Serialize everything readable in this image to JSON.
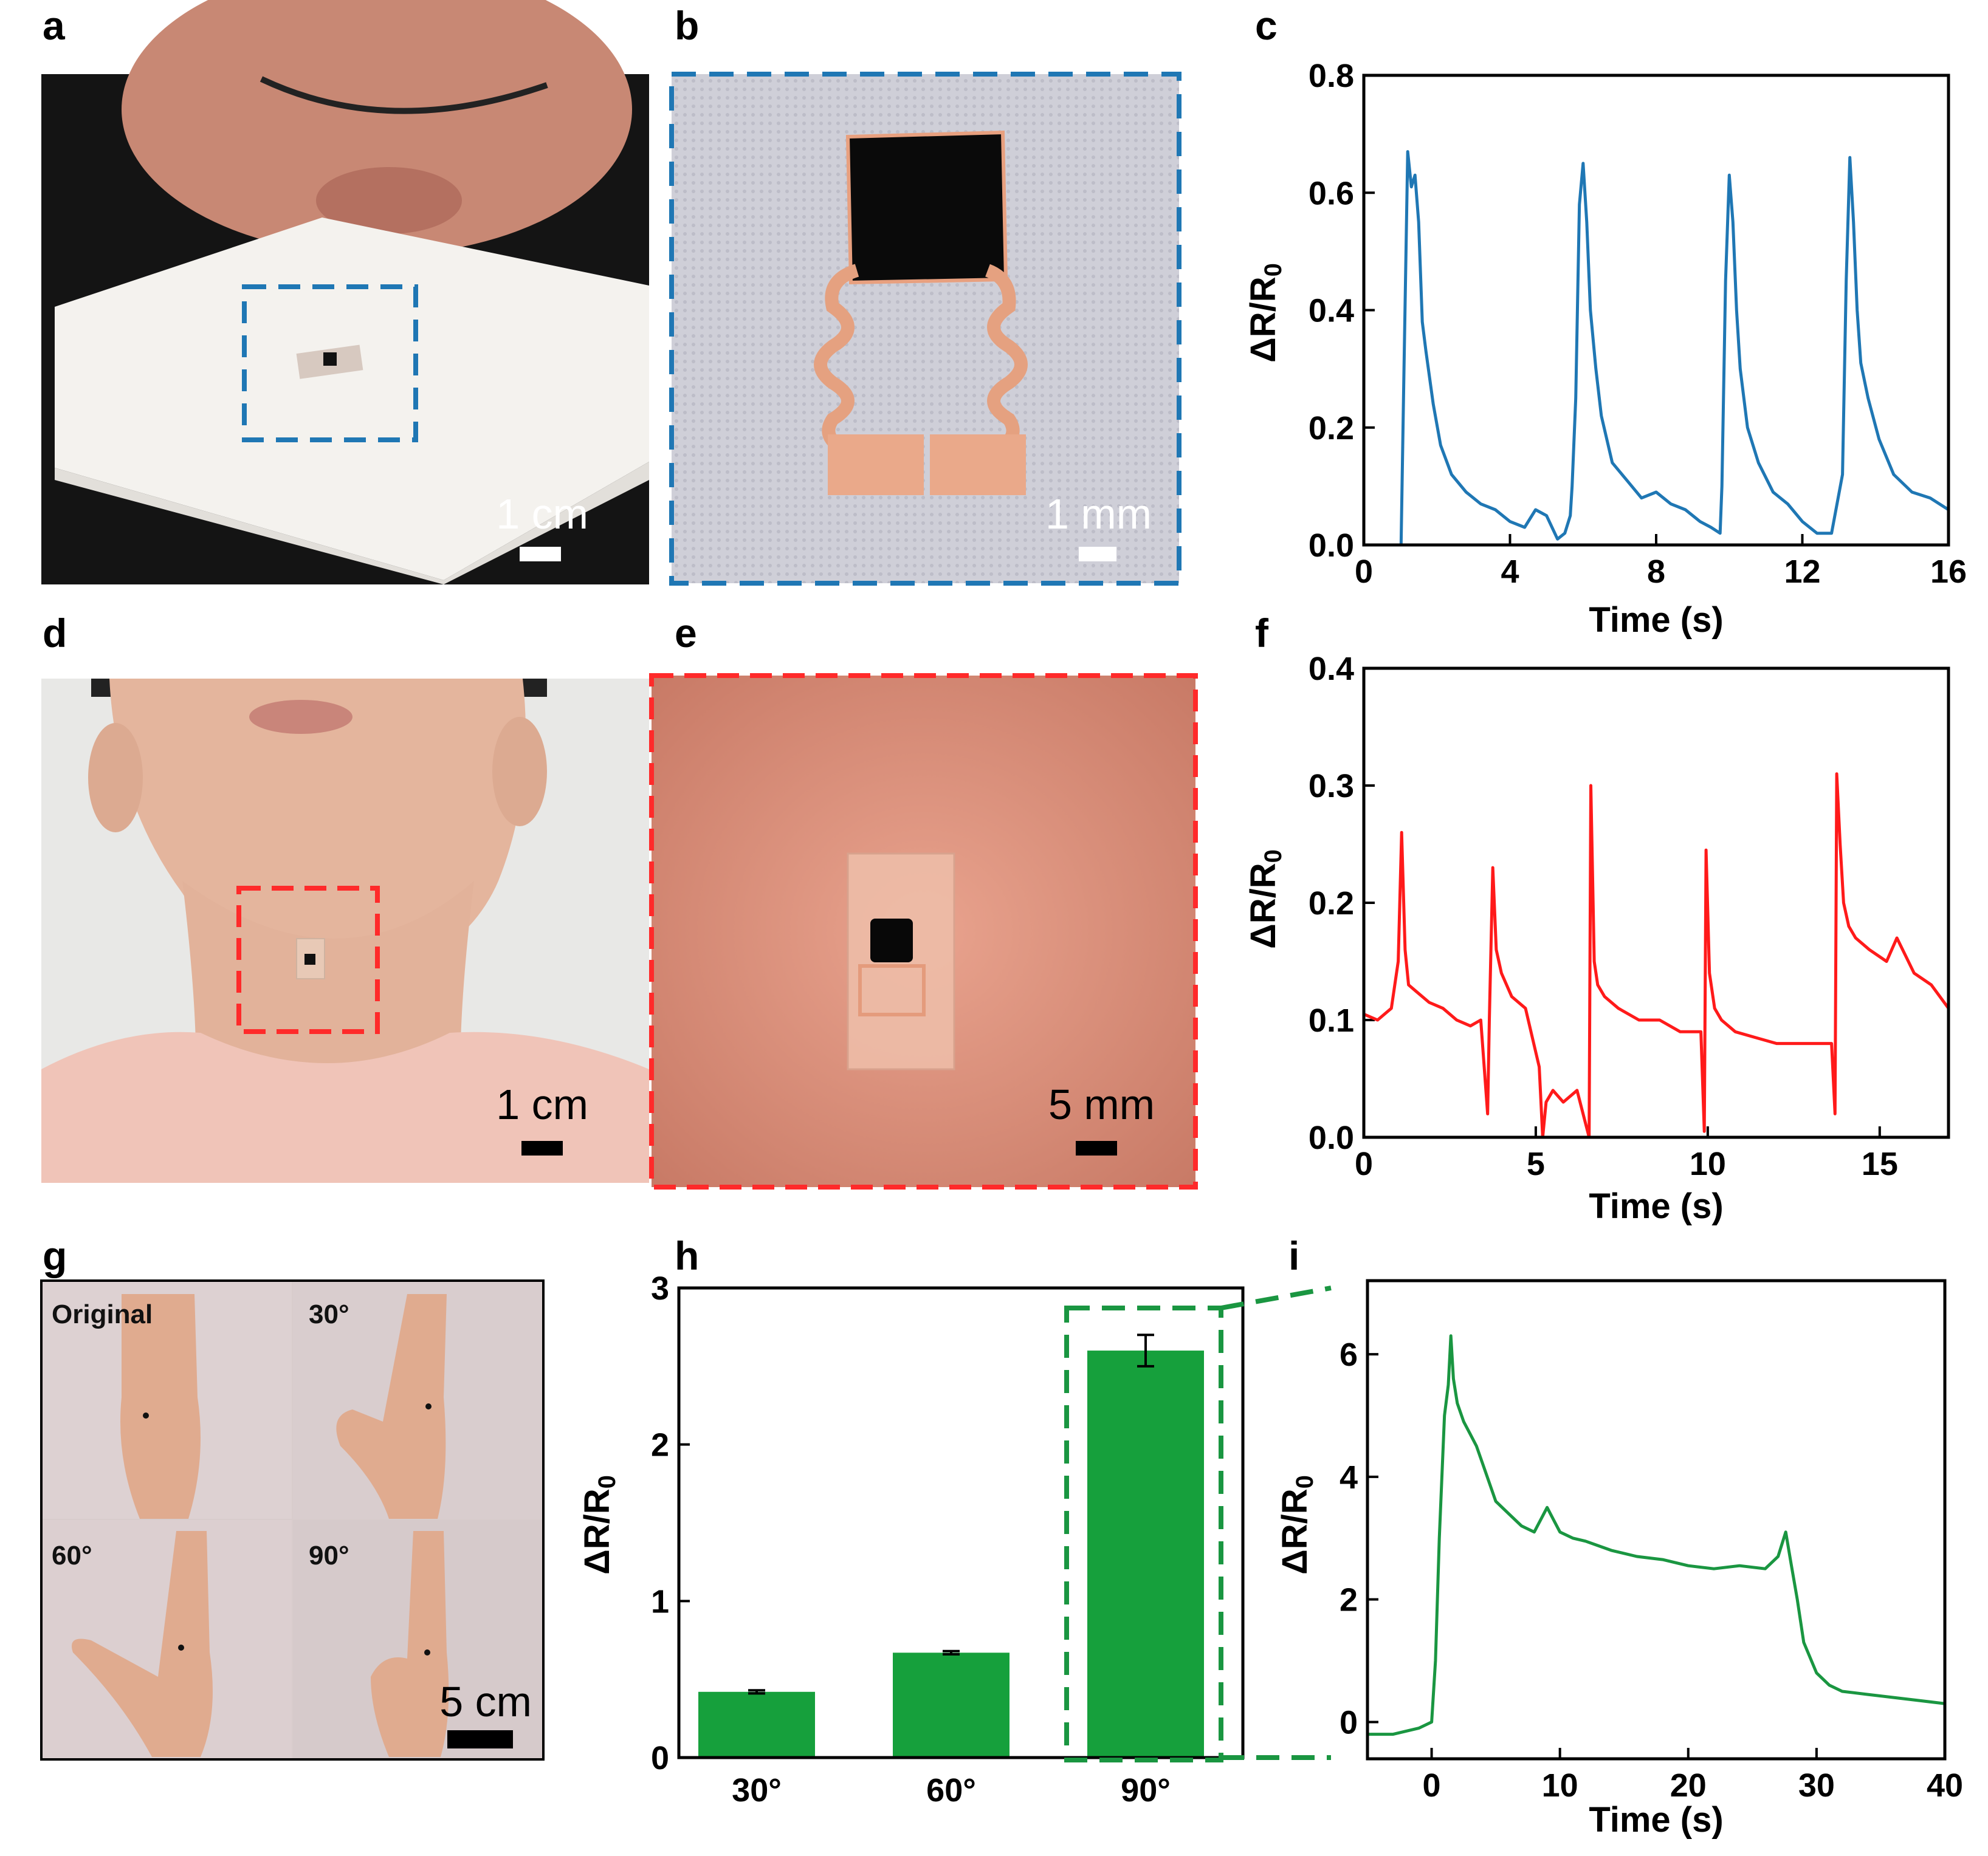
{
  "panel_labels": [
    "a",
    "b",
    "c",
    "d",
    "e",
    "f",
    "g",
    "h",
    "i"
  ],
  "photos": {
    "a": {
      "scale_text": "1 cm"
    },
    "b": {
      "scale_text": "1 mm"
    },
    "d": {
      "scale_text": "1 cm"
    },
    "e": {
      "scale_text": "5 mm"
    },
    "g": {
      "scale_text": "5 cm",
      "labels": [
        "Original",
        "30°",
        "60°",
        "90°"
      ]
    }
  },
  "colors": {
    "blue": "#1f77b4",
    "red": "#ff1a1a",
    "green": "#1a9641",
    "bar_green": "#16a03c"
  },
  "chart_data": [
    {
      "panel": "c",
      "type": "line",
      "xlabel": "Time (s)",
      "ylabel": "ΔR/R0",
      "xlim": [
        0,
        16
      ],
      "ylim": [
        0,
        0.8
      ],
      "xticks": [
        "0",
        "4",
        "8",
        "12",
        "16"
      ],
      "yticks": [
        "0.0",
        "0.2",
        "0.4",
        "0.6",
        "0.8"
      ],
      "series": [
        {
          "color": "#1f77b4",
          "x": [
            0.95,
            1.02,
            1.1,
            1.2,
            1.3,
            1.4,
            1.5,
            1.6,
            1.7,
            1.9,
            2.1,
            2.4,
            2.8,
            3.2,
            3.6,
            4.0,
            4.4,
            4.7,
            5.0,
            5.3,
            5.5,
            5.65,
            5.7,
            5.8,
            5.9,
            6.0,
            6.1,
            6.2,
            6.35,
            6.5,
            6.8,
            7.2,
            7.6,
            8.0,
            8.4,
            8.8,
            9.2,
            9.5,
            9.75,
            9.8,
            9.9,
            10.0,
            10.1,
            10.2,
            10.3,
            10.5,
            10.8,
            11.2,
            11.6,
            12.0,
            12.4,
            12.8,
            13.1,
            13.2,
            13.3,
            13.4,
            13.5,
            13.6,
            13.8,
            14.1,
            14.5,
            15.0,
            15.5,
            16.0
          ],
          "y": [
            0.0,
            0.0,
            0.3,
            0.67,
            0.61,
            0.63,
            0.55,
            0.38,
            0.33,
            0.24,
            0.17,
            0.12,
            0.09,
            0.07,
            0.06,
            0.04,
            0.03,
            0.06,
            0.05,
            0.01,
            0.02,
            0.05,
            0.1,
            0.25,
            0.58,
            0.65,
            0.55,
            0.4,
            0.3,
            0.22,
            0.14,
            0.11,
            0.08,
            0.09,
            0.07,
            0.06,
            0.04,
            0.03,
            0.02,
            0.1,
            0.45,
            0.63,
            0.55,
            0.4,
            0.3,
            0.2,
            0.14,
            0.09,
            0.07,
            0.04,
            0.02,
            0.02,
            0.12,
            0.45,
            0.66,
            0.55,
            0.4,
            0.31,
            0.25,
            0.18,
            0.12,
            0.09,
            0.08,
            0.06
          ]
        }
      ]
    },
    {
      "panel": "f",
      "type": "line",
      "xlabel": "Time (s)",
      "ylabel": "ΔR/R0",
      "xlim": [
        0,
        17
      ],
      "ylim": [
        0,
        0.4
      ],
      "xticks": [
        "0",
        "5",
        "10",
        "15"
      ],
      "yticks": [
        "0.0",
        "0.1",
        "0.2",
        "0.3",
        "0.4"
      ],
      "series": [
        {
          "color": "#ff1a1a",
          "x": [
            0.0,
            0.4,
            0.8,
            1.0,
            1.1,
            1.2,
            1.3,
            1.5,
            1.9,
            2.3,
            2.7,
            3.1,
            3.4,
            3.6,
            3.65,
            3.75,
            3.85,
            4.0,
            4.3,
            4.7,
            5.1,
            5.2,
            5.3,
            5.5,
            5.8,
            6.2,
            6.55,
            6.6,
            6.7,
            6.8,
            7.0,
            7.4,
            8.0,
            8.6,
            9.2,
            9.8,
            9.9,
            9.95,
            10.05,
            10.2,
            10.4,
            10.8,
            11.4,
            12.0,
            12.6,
            13.2,
            13.6,
            13.7,
            13.75,
            13.85,
            13.95,
            14.1,
            14.3,
            14.7,
            15.2,
            15.5,
            16.0,
            16.5,
            17.0
          ],
          "y": [
            0.105,
            0.1,
            0.11,
            0.15,
            0.26,
            0.16,
            0.13,
            0.125,
            0.115,
            0.11,
            0.1,
            0.095,
            0.1,
            0.02,
            0.1,
            0.23,
            0.16,
            0.14,
            0.12,
            0.11,
            0.06,
            0.0,
            0.03,
            0.04,
            0.03,
            0.04,
            0.0,
            0.3,
            0.15,
            0.13,
            0.12,
            0.11,
            0.1,
            0.1,
            0.09,
            0.09,
            0.005,
            0.245,
            0.14,
            0.11,
            0.1,
            0.09,
            0.085,
            0.08,
            0.08,
            0.08,
            0.08,
            0.02,
            0.31,
            0.25,
            0.2,
            0.18,
            0.17,
            0.16,
            0.15,
            0.17,
            0.14,
            0.13,
            0.11
          ]
        }
      ]
    },
    {
      "panel": "h",
      "type": "bar",
      "ylabel": "ΔR/R0",
      "categories": [
        "30°",
        "60°",
        "90°"
      ],
      "values": [
        0.42,
        0.67,
        2.6
      ],
      "errors": [
        0.01,
        0.01,
        0.1
      ],
      "ylim": [
        0,
        3
      ],
      "yticks": [
        "0",
        "1",
        "2",
        "3"
      ]
    },
    {
      "panel": "i",
      "type": "line",
      "xlabel": "Time (s)",
      "ylabel": "ΔR/R0",
      "xlim": [
        -5,
        40
      ],
      "ylim": [
        -0.6,
        7.2
      ],
      "xticks": [
        "0",
        "10",
        "20",
        "30",
        "40"
      ],
      "yticks": [
        "0",
        "2",
        "4",
        "6"
      ],
      "series": [
        {
          "color": "#1a9641",
          "x": [
            -5,
            -3,
            -1,
            0,
            0.3,
            0.6,
            1.0,
            1.3,
            1.5,
            1.7,
            2.0,
            2.5,
            3.0,
            3.5,
            4.0,
            5.0,
            6.0,
            7.0,
            8.0,
            8.5,
            9.0,
            9.5,
            10.0,
            11,
            12,
            14,
            16,
            18,
            20,
            22,
            24,
            26,
            27,
            27.6,
            28,
            28.5,
            29,
            30,
            31,
            32,
            34,
            36,
            38,
            40
          ],
          "y": [
            -0.2,
            -0.2,
            -0.1,
            0.0,
            1.0,
            3.0,
            5.0,
            5.5,
            6.3,
            5.6,
            5.2,
            4.9,
            4.7,
            4.5,
            4.2,
            3.6,
            3.4,
            3.2,
            3.1,
            3.3,
            3.5,
            3.3,
            3.1,
            3.0,
            2.95,
            2.8,
            2.7,
            2.65,
            2.55,
            2.5,
            2.55,
            2.5,
            2.7,
            3.1,
            2.6,
            2.0,
            1.3,
            0.8,
            0.6,
            0.5,
            0.45,
            0.4,
            0.35,
            0.3
          ]
        }
      ]
    }
  ]
}
